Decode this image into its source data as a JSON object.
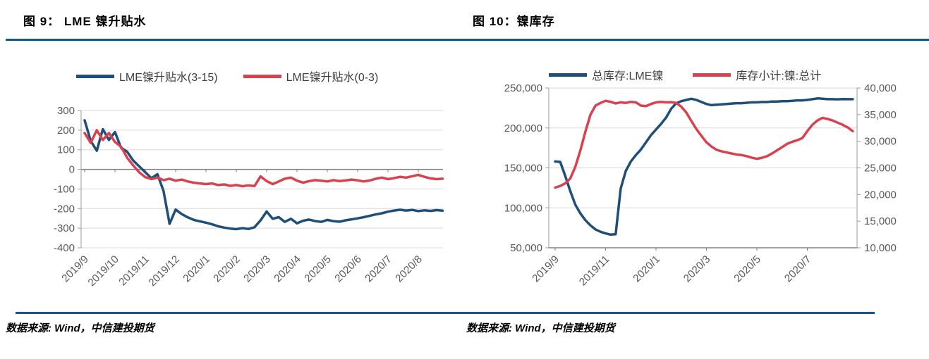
{
  "chart_data": [
    {
      "type": "line",
      "title": "图 9：  LME 镍升贴水",
      "source": "数据来源: Wind，中信建投期货",
      "x_unit": "month",
      "x_range": [
        0,
        11.8
      ],
      "x_ticks": [
        {
          "m": 0,
          "label": "2019/9"
        },
        {
          "m": 1,
          "label": "2019/10"
        },
        {
          "m": 2,
          "label": "2019/11"
        },
        {
          "m": 3,
          "label": "2019/12"
        },
        {
          "m": 4,
          "label": "2020/1"
        },
        {
          "m": 5,
          "label": "2020/2"
        },
        {
          "m": 6,
          "label": "2020/3"
        },
        {
          "m": 7,
          "label": "2020/4"
        },
        {
          "m": 8,
          "label": "2020/5"
        },
        {
          "m": 9,
          "label": "2020/6"
        },
        {
          "m": 10,
          "label": "2020/7"
        },
        {
          "m": 11,
          "label": "2020/8"
        }
      ],
      "axes": {
        "left": {
          "min": -400,
          "max": 300,
          "step": 100,
          "format": "plain"
        },
        "right": null
      },
      "category_axis": "zero",
      "grid": true,
      "legend_position": "top",
      "series": [
        {
          "name": "LME镍升贴水(3-15)",
          "color": "#1F4E79",
          "axis": "left",
          "x_start": 0,
          "x_step": 0.2,
          "values": [
            250,
            145,
            95,
            205,
            150,
            190,
            110,
            90,
            45,
            15,
            -15,
            -45,
            -25,
            -110,
            -278,
            -205,
            -228,
            -245,
            -258,
            -265,
            -272,
            -280,
            -290,
            -297,
            -302,
            -305,
            -300,
            -304,
            -295,
            -260,
            -215,
            -252,
            -244,
            -268,
            -252,
            -275,
            -262,
            -256,
            -264,
            -268,
            -258,
            -264,
            -267,
            -260,
            -255,
            -250,
            -244,
            -237,
            -230,
            -224,
            -216,
            -210,
            -206,
            -210,
            -207,
            -213,
            -209,
            -212,
            -208,
            -211
          ]
        },
        {
          "name": "LME镍升贴水(0-3)",
          "color": "#D8414E",
          "axis": "left",
          "x_start": 0,
          "x_step": 0.2,
          "values": [
            185,
            135,
            200,
            150,
            185,
            140,
            115,
            60,
            20,
            -15,
            -40,
            -50,
            -42,
            -55,
            -48,
            -58,
            -52,
            -62,
            -68,
            -72,
            -75,
            -72,
            -80,
            -77,
            -84,
            -80,
            -86,
            -82,
            -85,
            -36,
            -60,
            -75,
            -62,
            -48,
            -42,
            -58,
            -68,
            -60,
            -55,
            -58,
            -62,
            -55,
            -60,
            -57,
            -52,
            -56,
            -62,
            -57,
            -48,
            -42,
            -50,
            -45,
            -38,
            -42,
            -35,
            -28,
            -38,
            -46,
            -50,
            -48
          ]
        }
      ]
    },
    {
      "type": "line",
      "title": "图 10：镍库存",
      "source": "数据来源: Wind，中信建投期货",
      "x_unit": "month",
      "x_range": [
        0,
        11.8
      ],
      "x_ticks": [
        {
          "m": 0,
          "label": "2019/9"
        },
        {
          "m": 2,
          "label": "2019/11"
        },
        {
          "m": 4,
          "label": "2020/1"
        },
        {
          "m": 6,
          "label": "2020/3"
        },
        {
          "m": 8,
          "label": "2020/5"
        },
        {
          "m": 10,
          "label": "2020/7"
        }
      ],
      "axes": {
        "left": {
          "min": 50000,
          "max": 250000,
          "step": 50000,
          "format": "thousands"
        },
        "right": {
          "min": 10000,
          "max": 40000,
          "step": 5000,
          "format": "thousands"
        }
      },
      "category_axis": "bottom",
      "grid": true,
      "legend_position": "top",
      "series": [
        {
          "name": "总库存:LME镍",
          "color": "#1F4E79",
          "axis": "left",
          "x_start": 0,
          "x_step": 0.2,
          "values": [
            158000,
            157500,
            140000,
            121000,
            104000,
            93000,
            84500,
            78000,
            73000,
            70000,
            68000,
            66500,
            67000,
            124000,
            146000,
            158000,
            166000,
            173000,
            182000,
            191000,
            198000,
            205000,
            213000,
            224000,
            231000,
            233500,
            235000,
            236500,
            235000,
            232500,
            230000,
            228500,
            229000,
            229500,
            230000,
            230500,
            231000,
            231000,
            231500,
            232000,
            232000,
            232500,
            232500,
            233000,
            233000,
            233500,
            233500,
            234000,
            234500,
            234500,
            235000,
            236000,
            237000,
            236500,
            236000,
            236000,
            235800,
            236200,
            236000,
            236000
          ]
        },
        {
          "name": "库存小计:镍:总计",
          "color": "#D8414E",
          "axis": "right",
          "x_start": 0,
          "x_step": 0.2,
          "values": [
            21300,
            21600,
            22100,
            23000,
            25200,
            28300,
            31800,
            35000,
            36700,
            37200,
            37600,
            37400,
            37100,
            37300,
            37200,
            37400,
            37300,
            36700,
            36600,
            37000,
            37300,
            37400,
            37300,
            37350,
            37200,
            36500,
            35400,
            33800,
            32300,
            31000,
            29800,
            29000,
            28400,
            28100,
            27900,
            27700,
            27500,
            27400,
            27200,
            26900,
            26700,
            26900,
            27200,
            27700,
            28300,
            28900,
            29500,
            29900,
            30200,
            30600,
            31900,
            33100,
            33900,
            34400,
            34200,
            33900,
            33500,
            33100,
            32600,
            31900
          ]
        }
      ]
    }
  ],
  "style": {
    "rule_color": "#17568C",
    "gridline_color": "#D9D9D9",
    "axis_color": "#9B9B9B",
    "zero_axis_color": "#808080",
    "tick_text_color": "#595959"
  }
}
